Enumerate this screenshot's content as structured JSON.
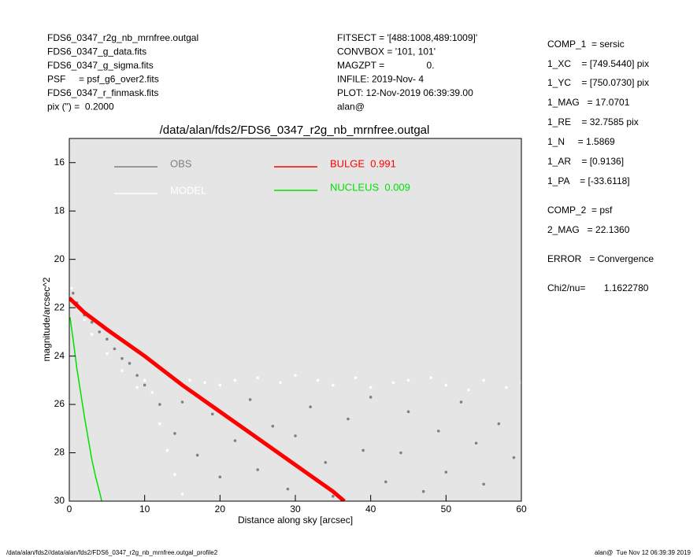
{
  "header": {
    "left": [
      "FDS6_0347_r2g_nb_mrnfree.outgal",
      "FDS6_0347_g_data.fits",
      "FDS6_0347_g_sigma.fits",
      "PSF     = psf_g6_over2.fits",
      "FDS6_0347_r_finmask.fits",
      "pix (\") =  0.2000"
    ],
    "middle": [
      "FITSECT = '[488:1008,489:1009]'",
      "CONVBOX = '101, 101'",
      "MAGZPT =                0.",
      "INFILE: 2019-Nov- 4",
      "PLOT: 12-Nov-2019 06:39:39.00",
      "alan@"
    ],
    "right": [
      "COMP_1  = sersic",
      "1_XC    = [749.5440] pix",
      "1_YC    = [750.0730] pix",
      "1_MAG   = 17.0701",
      "1_RE    = 32.7585 pix",
      "1_N     = 1.5869",
      "1_AR    = [0.9136]",
      "1_PA    = [-33.6118]",
      "COMP_2  = psf",
      "2_MAG   = 22.1360",
      "ERROR   = Convergence",
      "Chi2/nu=       1.1622780"
    ]
  },
  "chart_data": {
    "type": "scatter",
    "title": "/data/alan/fds2/FDS6_0347_r2g_nb_mrnfree.outgal",
    "xlabel": "Distance along sky [arcsec]",
    "ylabel": "magnitude/arcsec^2",
    "xlim": [
      0,
      60
    ],
    "ylim": [
      15,
      30
    ],
    "y_inverted": true,
    "xticks": [
      0,
      10,
      20,
      30,
      40,
      50,
      60
    ],
    "yticks": [
      16,
      18,
      20,
      22,
      24,
      26,
      28,
      30
    ],
    "background": "#e5e5e5",
    "series": [
      {
        "name": "OBS",
        "color": "#808080",
        "kind": "points",
        "x": [
          0.5,
          1,
          2,
          3,
          4,
          5,
          6,
          7,
          8,
          9,
          10,
          12,
          14,
          15,
          17,
          19,
          20,
          22,
          24,
          25,
          27,
          29,
          30,
          32,
          34,
          35,
          37,
          39,
          40,
          42,
          44,
          45,
          47,
          49,
          50,
          52,
          54,
          55,
          57,
          59
        ],
        "values": [
          21.4,
          21.8,
          22.3,
          22.6,
          23.0,
          23.3,
          23.7,
          24.1,
          24.3,
          24.8,
          25.2,
          26.0,
          27.2,
          25.9,
          28.1,
          26.4,
          29.0,
          27.5,
          25.8,
          28.7,
          26.9,
          29.5,
          27.3,
          26.1,
          28.4,
          29.8,
          26.6,
          27.9,
          25.7,
          29.2,
          28.0,
          26.3,
          29.6,
          27.1,
          28.8,
          25.9,
          27.6,
          29.3,
          26.8,
          28.2
        ]
      },
      {
        "name": "MODEL",
        "color": "#ffffff",
        "kind": "points",
        "x": [
          0.3,
          1,
          2,
          3,
          5,
          7,
          9,
          10,
          11,
          12,
          13,
          14,
          15,
          16,
          18,
          20,
          22,
          25,
          28,
          30,
          33,
          35,
          38,
          40,
          43,
          45,
          48,
          50,
          53,
          55,
          58,
          60
        ],
        "values": [
          21.2,
          21.9,
          22.5,
          23.1,
          23.9,
          24.6,
          25.3,
          25.0,
          25.5,
          26.8,
          27.9,
          28.9,
          29.7,
          25.0,
          25.1,
          25.2,
          25.0,
          24.9,
          25.1,
          24.8,
          25.0,
          25.2,
          24.9,
          25.3,
          25.1,
          25.0,
          24.9,
          25.2,
          25.4,
          25.0,
          25.3,
          25.1
        ]
      },
      {
        "name": "BULGE  0.991",
        "color": "#ff0000",
        "kind": "line",
        "x": [
          0,
          2,
          5,
          10,
          15,
          20,
          25,
          30,
          35,
          36.5
        ],
        "values": [
          21.6,
          22.2,
          22.9,
          24.0,
          25.2,
          26.3,
          27.4,
          28.5,
          29.6,
          30.0
        ]
      },
      {
        "name": "NUCLEUS  0.009",
        "color": "#00e000",
        "kind": "line",
        "x": [
          0.1,
          0.5,
          1,
          1.5,
          2,
          2.5,
          3,
          3.5,
          4,
          4.3
        ],
        "values": [
          22.4,
          23.3,
          24.5,
          25.5,
          26.5,
          27.4,
          28.3,
          29.0,
          29.6,
          30.0
        ]
      }
    ]
  },
  "footer": {
    "left": "/data/alan/fds2//data/alan/fds2/FDS6_0347_r2g_nb_mrnfree.outgal_profile2",
    "right": "alan@  Tue Nov 12 06:39:39 2019"
  }
}
